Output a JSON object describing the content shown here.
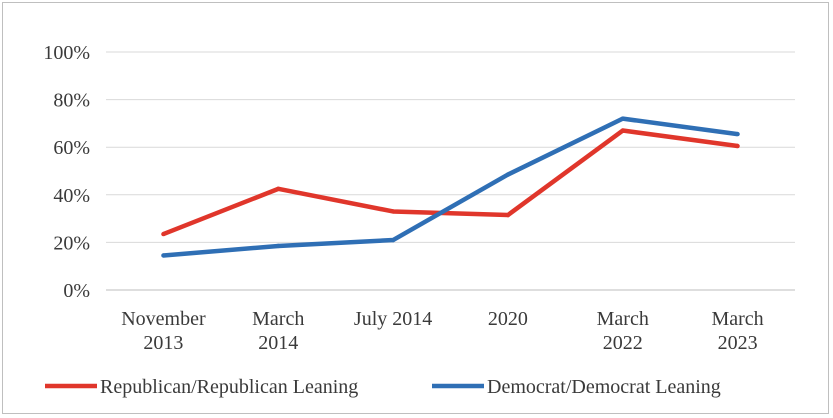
{
  "chart_data": {
    "type": "line",
    "categories": [
      [
        "November",
        "2013"
      ],
      [
        "March",
        "2014"
      ],
      [
        "July 2014"
      ],
      [
        "2020"
      ],
      [
        "March",
        "2022"
      ],
      [
        "March",
        "2023"
      ]
    ],
    "ylim": [
      0,
      100
    ],
    "yticks": [
      0,
      20,
      40,
      60,
      80,
      100
    ],
    "ytick_labels": [
      "0%",
      "20%",
      "40%",
      "60%",
      "80%",
      "100%"
    ],
    "grid": true,
    "legend_position": "bottom",
    "series": [
      {
        "name": "Republican/Republican Leaning",
        "color": "#e0362b",
        "values": [
          23.5,
          42.5,
          33,
          31.5,
          67,
          60.5
        ]
      },
      {
        "name": "Democrat/Democrat Leaning",
        "color": "#2f6fb5",
        "values": [
          14.5,
          18.5,
          21,
          48.5,
          72,
          65.5
        ]
      }
    ]
  }
}
